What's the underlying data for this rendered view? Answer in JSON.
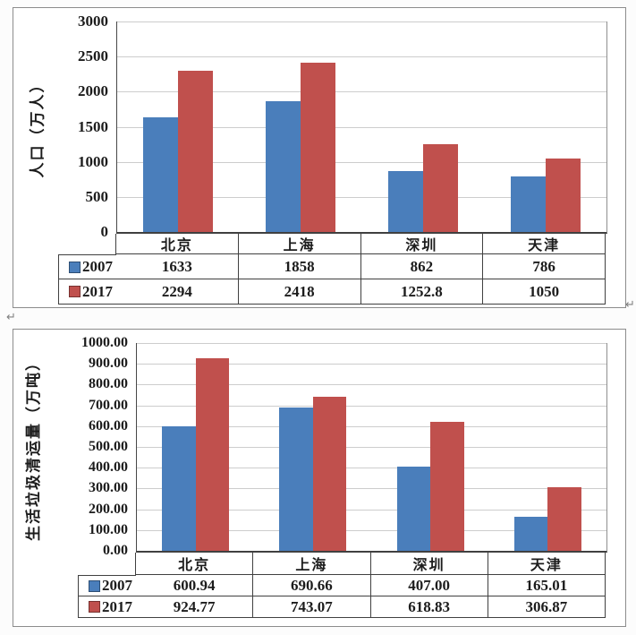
{
  "page": {
    "paragraph_mark": "↵"
  },
  "colors": {
    "series_2007": "#4A7EBB",
    "series_2017": "#C0504D",
    "gridline": "#CDCDCD"
  },
  "chart_data": [
    {
      "type": "bar",
      "title": "",
      "xlabel": "",
      "ylabel": "人口（万人）",
      "categories": [
        "北京",
        "上海",
        "深圳",
        "天津"
      ],
      "series": [
        {
          "name": "2007",
          "color": "#4A7EBB",
          "values": [
            1633,
            1858,
            862,
            786
          ],
          "value_labels": [
            "1633",
            "1858",
            "862",
            "786"
          ]
        },
        {
          "name": "2017",
          "color": "#C0504D",
          "values": [
            2294,
            2418,
            1252.8,
            1050
          ],
          "value_labels": [
            "2294",
            "2418",
            "1252.8",
            "1050"
          ]
        }
      ],
      "ylim": [
        0,
        3000
      ],
      "y_tick_step": 500,
      "y_tick_labels": [
        "3000",
        "2500",
        "2000",
        "1500",
        "1000",
        "500",
        "0"
      ],
      "grid": true,
      "legend_position": "data-table-left"
    },
    {
      "type": "bar",
      "title": "",
      "xlabel": "",
      "ylabel": "生活垃圾清运量（万吨）",
      "categories": [
        "北京",
        "上海",
        "深圳",
        "天津"
      ],
      "series": [
        {
          "name": "2007",
          "color": "#4A7EBB",
          "values": [
            600.94,
            690.66,
            407.0,
            165.01
          ],
          "value_labels": [
            "600.94",
            "690.66",
            "407.00",
            "165.01"
          ]
        },
        {
          "name": "2017",
          "color": "#C0504D",
          "values": [
            924.77,
            743.07,
            618.83,
            306.87
          ],
          "value_labels": [
            "924.77",
            "743.07",
            "618.83",
            "306.87"
          ]
        }
      ],
      "ylim": [
        0,
        1000
      ],
      "y_tick_step": 100,
      "y_tick_labels": [
        "1000.00",
        "900.00",
        "800.00",
        "700.00",
        "600.00",
        "500.00",
        "400.00",
        "300.00",
        "200.00",
        "100.00",
        "0.00"
      ],
      "grid": true,
      "legend_position": "data-table-left"
    }
  ]
}
